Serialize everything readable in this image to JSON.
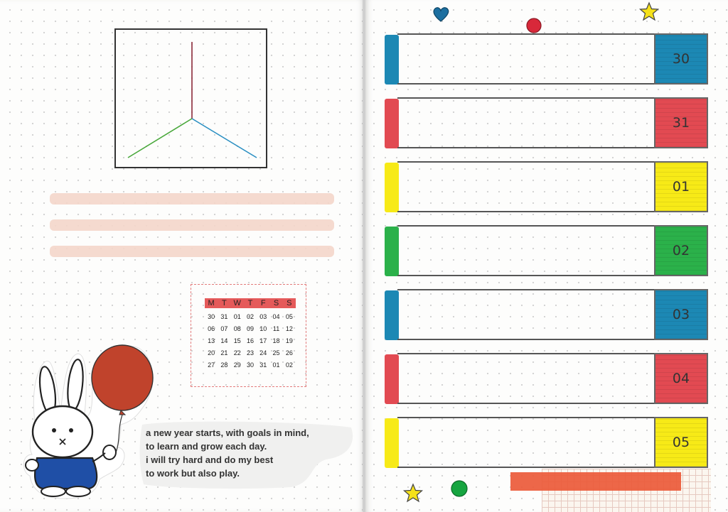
{
  "colors": {
    "blue": "#1c88b4",
    "red": "#e24a52",
    "yellow": "#f7ea17",
    "green": "#2bb14a",
    "balloon": "#c0432c",
    "bunny_shirt": "#1f4fa6",
    "washi": "#f4d6ca"
  },
  "calendar": {
    "weekdays": [
      "M",
      "T",
      "W",
      "T",
      "F",
      "S",
      "S"
    ],
    "weeks": [
      [
        "30",
        "31",
        "01",
        "02",
        "03",
        "04",
        "05"
      ],
      [
        "06",
        "07",
        "08",
        "09",
        "10",
        "11",
        "12"
      ],
      [
        "13",
        "14",
        "15",
        "16",
        "17",
        "18",
        "19"
      ],
      [
        "20",
        "21",
        "22",
        "23",
        "24",
        "25",
        "26"
      ],
      [
        "27",
        "28",
        "29",
        "30",
        "31",
        "01",
        "02"
      ]
    ]
  },
  "poem": {
    "lines": [
      "a new year starts, with goals in mind,",
      "to learn and grow each day.",
      "i will try hard and do my best",
      "to work but also play."
    ]
  },
  "days": [
    {
      "number": "30",
      "color": "#1c88b4"
    },
    {
      "number": "31",
      "color": "#e24a52"
    },
    {
      "number": "01",
      "color": "#f7ea17"
    },
    {
      "number": "02",
      "color": "#2bb14a"
    },
    {
      "number": "03",
      "color": "#1c88b4"
    },
    {
      "number": "04",
      "color": "#e24a52"
    },
    {
      "number": "05",
      "color": "#f7ea17"
    }
  ],
  "decorations": [
    "heart-icon",
    "dot-icon",
    "star-icon"
  ]
}
